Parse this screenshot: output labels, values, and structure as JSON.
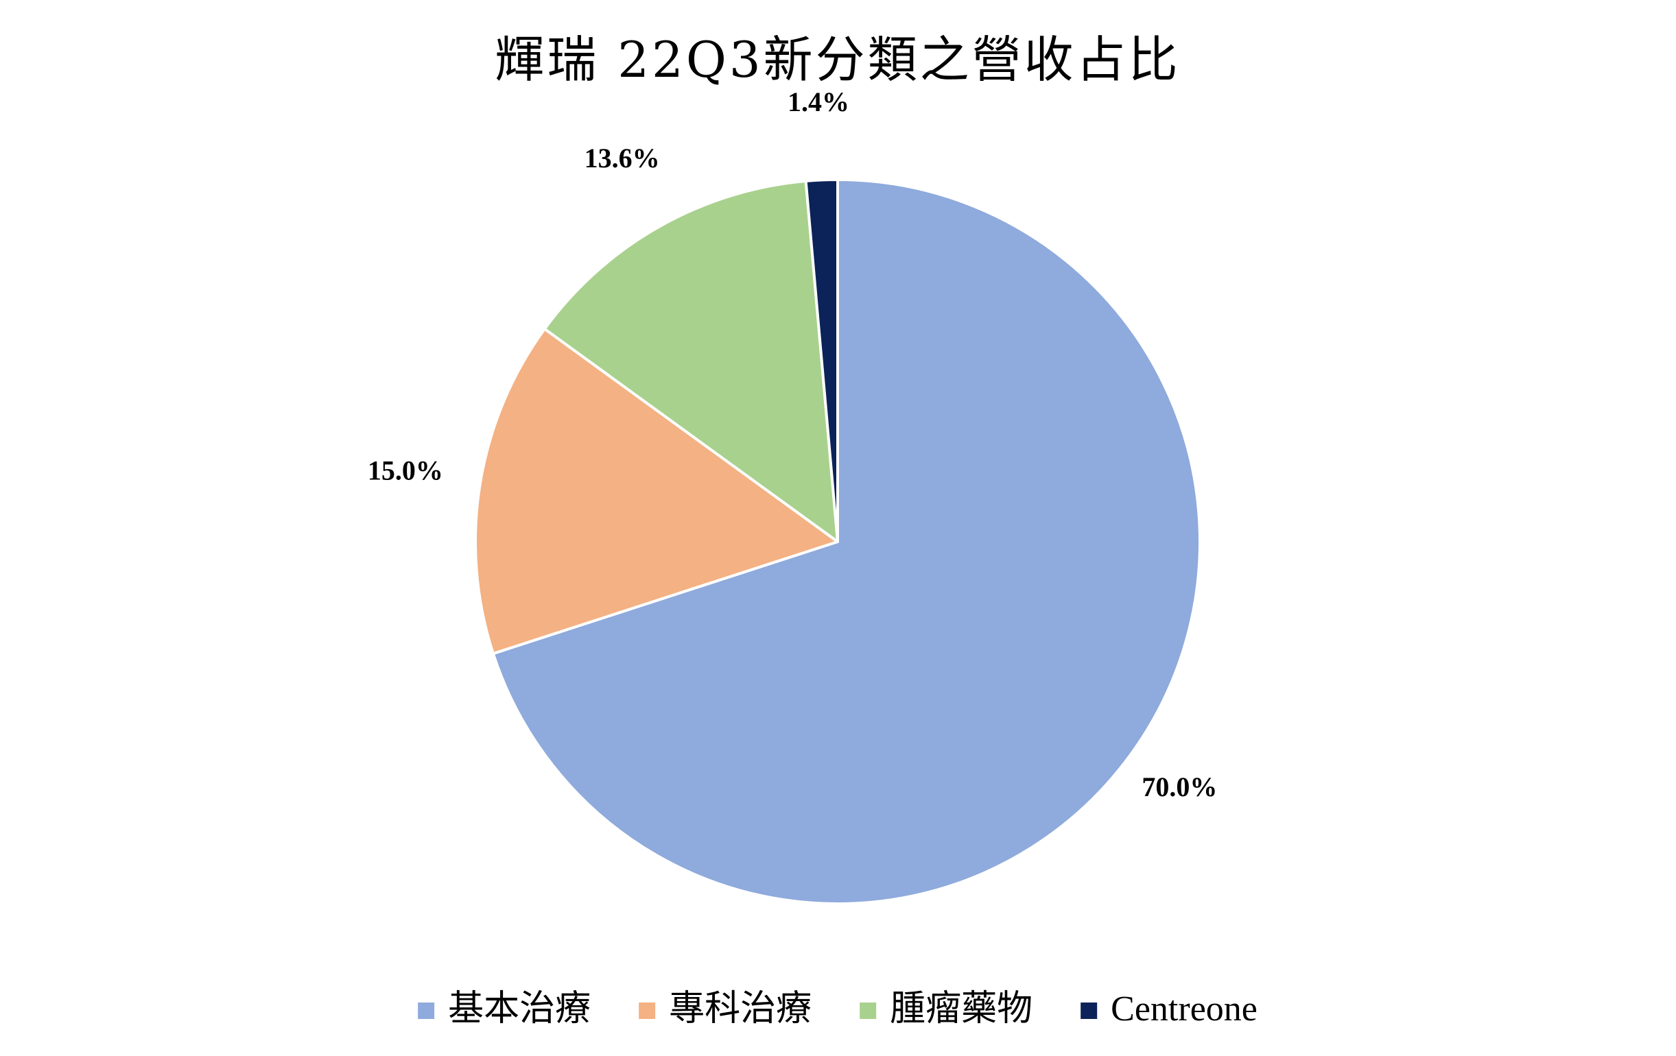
{
  "chart_data": {
    "type": "pie",
    "title": "輝瑞 22Q3新分類之營收占比",
    "categories": [
      "基本治療",
      "專科治療",
      "腫瘤藥物",
      "Centreone"
    ],
    "values": [
      70.0,
      15.0,
      13.6,
      1.4
    ],
    "labels": [
      "70.0%",
      "15.0%",
      "13.6%",
      "1.4%"
    ],
    "colors": [
      "#8FAADC",
      "#F4B183",
      "#A9D18E",
      "#0C2359"
    ],
    "start_angle_deg": 0,
    "direction": "clockwise",
    "legend_position": "bottom"
  }
}
